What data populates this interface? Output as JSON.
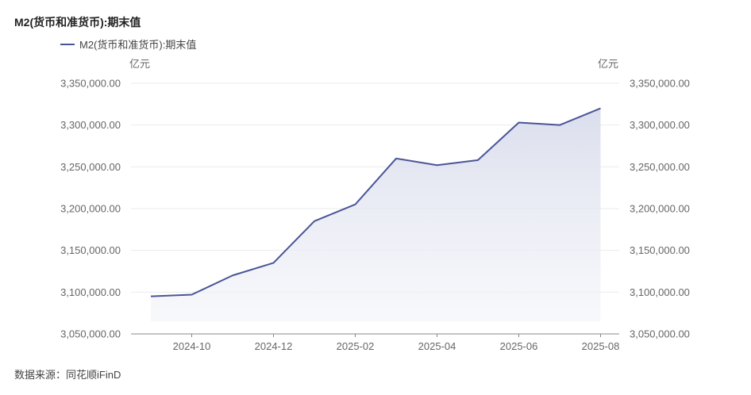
{
  "chart_data": {
    "type": "area",
    "title": "M2(货币和准货币):期末值",
    "legend": [
      "M2(货币和准货币):期末值"
    ],
    "unit_left": "亿元",
    "unit_right": "亿元",
    "source": "数据来源：同花顺iFinD",
    "ylim": [
      3050000,
      3350000
    ],
    "yticks": [
      3050000,
      3100000,
      3150000,
      3200000,
      3250000,
      3300000,
      3350000
    ],
    "ytick_labels": [
      "3,050,000.00",
      "3,100,000.00",
      "3,150,000.00",
      "3,200,000.00",
      "3,250,000.00",
      "3,300,000.00",
      "3,350,000.00"
    ],
    "x": [
      "2024-09",
      "2024-10",
      "2024-11",
      "2024-12",
      "2025-01",
      "2025-02",
      "2025-03",
      "2025-04",
      "2025-05",
      "2025-06",
      "2025-07",
      "2025-08"
    ],
    "xtick_labels": [
      "2024-10",
      "2024-12",
      "2025-02",
      "2025-04",
      "2025-06",
      "2025-08"
    ],
    "series": [
      {
        "name": "M2(货币和准货币):期末值",
        "values": [
          3095000,
          3097000,
          3120000,
          3135000,
          3185000,
          3205000,
          3260000,
          3252000,
          3258000,
          3303000,
          3300000,
          3320000
        ]
      }
    ],
    "colors": {
      "line": "#4a5597",
      "fill": "#dfe1ee",
      "grid": "#ebebeb",
      "axis": "#888888"
    },
    "legend_position": "top-left",
    "grid": true
  }
}
